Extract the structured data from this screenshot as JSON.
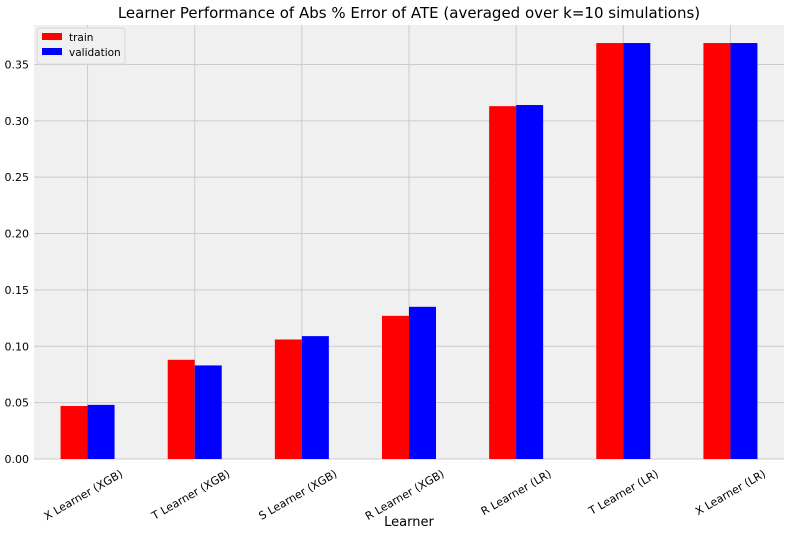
{
  "chart_data": {
    "type": "bar",
    "title": "Learner Performance of Abs % Error of ATE (averaged over k=10 simulations)",
    "xlabel": "Learner",
    "ylabel": "",
    "categories": [
      "X Learner (XGB)",
      "T Learner (XGB)",
      "S Learner (XGB)",
      "R Learner (XGB)",
      "R Learner (LR)",
      "T Learner (LR)",
      "X Learner (LR)"
    ],
    "series": [
      {
        "name": "train",
        "color": "#ff0000",
        "values": [
          0.047,
          0.088,
          0.106,
          0.127,
          0.313,
          0.369,
          0.369
        ]
      },
      {
        "name": "validation",
        "color": "#0000ff",
        "values": [
          0.048,
          0.083,
          0.109,
          0.135,
          0.314,
          0.369,
          0.369
        ]
      }
    ],
    "ylim": [
      0,
      0.385
    ],
    "yticks": [
      "0.00",
      "0.05",
      "0.10",
      "0.15",
      "0.20",
      "0.25",
      "0.30",
      "0.35"
    ],
    "grid": true,
    "legend_position": "top-left",
    "background": "#f0f0f0"
  }
}
